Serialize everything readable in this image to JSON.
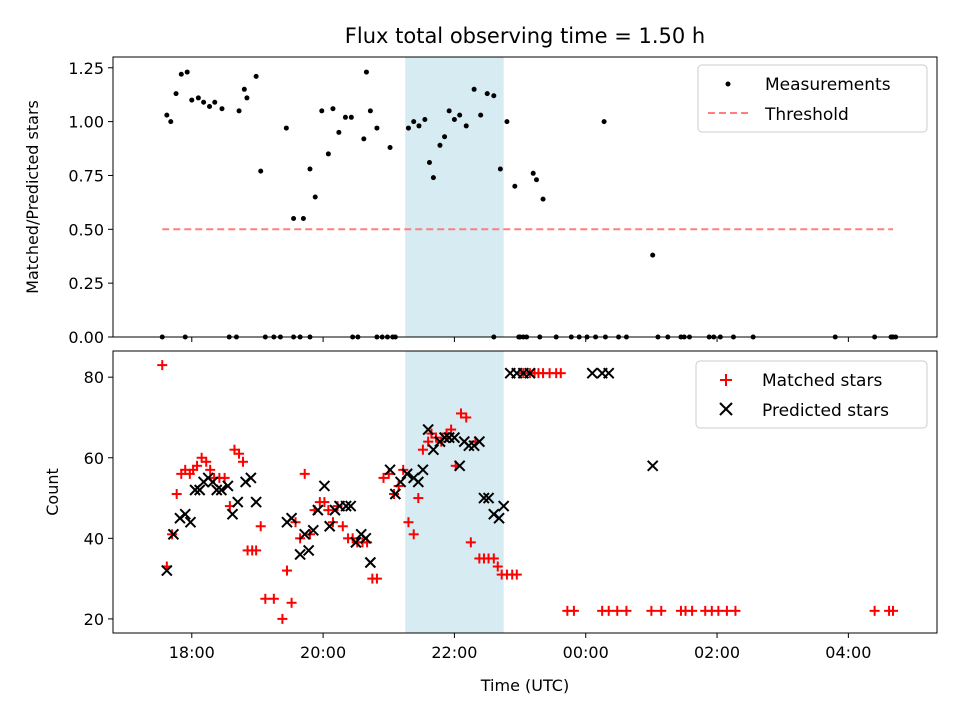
{
  "chart_data": [
    {
      "type": "scatter",
      "title": "Flux total observing time = 1.50 h",
      "ylabel": "Matched/Predicted stars",
      "xlabel": "",
      "xlim": [
        16.8,
        29.35
      ],
      "ylim": [
        0.0,
        1.3
      ],
      "yticks": [
        0.0,
        0.25,
        0.5,
        0.75,
        1.0,
        1.25
      ],
      "ytick_labels": [
        "0.00",
        "0.25",
        "0.50",
        "0.75",
        "1.00",
        "1.25"
      ],
      "shaded_span": [
        21.25,
        22.75
      ],
      "legend": {
        "position": "upper right",
        "entries": [
          "Measurements",
          "Threshold"
        ]
      },
      "series": [
        {
          "name": "Measurements",
          "kind": "points",
          "color": "#000000",
          "x": [
            17.55,
            17.62,
            17.68,
            17.76,
            17.84,
            17.93,
            18.0,
            18.1,
            18.18,
            18.27,
            18.35,
            18.46,
            18.57,
            18.72,
            18.8,
            18.84,
            18.98,
            19.05,
            19.44,
            19.55,
            19.7,
            19.8,
            19.88,
            19.98,
            20.08,
            20.15,
            20.24,
            20.34,
            20.43,
            20.53,
            20.62,
            20.66,
            20.72,
            20.82,
            21.02,
            21.3,
            21.38,
            21.46,
            21.55,
            21.62,
            21.68,
            21.78,
            21.85,
            21.92,
            22.0,
            22.08,
            22.18,
            22.3,
            22.4,
            22.5,
            22.6,
            22.7,
            22.8,
            22.92,
            23.0,
            23.1,
            23.2,
            23.25,
            23.35,
            24.28,
            25.02,
            26.55,
            27.8,
            28.65,
            28.68,
            28.72,
            17.9,
            18.68,
            19.12,
            19.25,
            19.35,
            19.55,
            19.65,
            19.8,
            20.45,
            20.82,
            20.9,
            20.98,
            21.06,
            21.1,
            22.6,
            22.98,
            23.05,
            23.3,
            23.55,
            23.78,
            23.9,
            24.02,
            24.15,
            24.3,
            24.5,
            24.62,
            25.1,
            25.25,
            25.45,
            25.5,
            25.58,
            25.88,
            25.95,
            26.05,
            26.25,
            28.4,
            28.66
          ],
          "y": [
            0.0,
            1.03,
            1.0,
            1.13,
            1.22,
            1.23,
            1.1,
            1.11,
            1.09,
            1.07,
            1.09,
            1.06,
            0.0,
            1.05,
            1.15,
            1.11,
            1.21,
            0.77,
            0.97,
            0.55,
            0.55,
            0.78,
            0.65,
            1.05,
            0.85,
            1.06,
            0.95,
            1.02,
            1.02,
            0.0,
            0.92,
            1.23,
            1.05,
            0.97,
            0.88,
            0.97,
            1.0,
            0.98,
            1.01,
            0.81,
            0.74,
            0.89,
            0.93,
            1.05,
            1.01,
            1.03,
            0.98,
            1.15,
            1.03,
            1.13,
            1.12,
            0.78,
            1.0,
            0.7,
            0.0,
            0.0,
            0.76,
            0.73,
            0.64,
            1.0,
            0.38,
            0.0,
            0.0,
            0.0,
            0.0,
            0.0,
            0.0,
            0.0,
            0.0,
            0.0,
            0.0,
            0.0,
            0.0,
            0.0,
            0.0,
            0.0,
            0.0,
            0.0,
            0.0,
            0.0,
            0.0,
            0.0,
            0.0,
            0.0,
            0.0,
            0.0,
            0.0,
            0.0,
            0.0,
            0.0,
            0.0,
            0.0,
            0.0,
            0.0,
            0.0,
            0.0,
            0.0,
            0.0,
            0.0,
            0.0,
            0.0,
            0.0,
            0.0
          ]
        },
        {
          "name": "Threshold",
          "kind": "dashed-line",
          "color": "#ff7f7f",
          "x": [
            17.55,
            28.68
          ],
          "y": [
            0.5,
            0.5
          ]
        }
      ]
    },
    {
      "type": "scatter",
      "title": "",
      "xlabel": "Time (UTC)",
      "ylabel": "Count",
      "xlim": [
        16.8,
        29.35
      ],
      "ylim": [
        16.5,
        86.5
      ],
      "xticks": [
        18,
        20,
        22,
        24,
        26,
        28
      ],
      "xtick_labels": [
        "18:00",
        "20:00",
        "22:00",
        "00:00",
        "02:00",
        "04:00"
      ],
      "yticks": [
        20,
        40,
        60,
        80
      ],
      "ytick_labels": [
        "20",
        "40",
        "60",
        "80"
      ],
      "shaded_span": [
        21.25,
        22.75
      ],
      "legend": {
        "position": "upper right",
        "entries": [
          "Matched stars",
          "Predicted stars"
        ]
      },
      "series": [
        {
          "name": "Matched stars",
          "marker": "+",
          "color": "#ff0000",
          "x": [
            17.55,
            17.62,
            17.7,
            17.77,
            17.84,
            17.9,
            17.97,
            18.02,
            18.08,
            18.15,
            18.22,
            18.28,
            18.34,
            18.42,
            18.5,
            18.58,
            18.65,
            18.72,
            18.78,
            18.85,
            18.92,
            18.98,
            19.05,
            19.12,
            19.25,
            19.38,
            19.45,
            19.52,
            19.58,
            19.65,
            19.72,
            19.8,
            19.87,
            19.95,
            20.02,
            20.08,
            20.15,
            20.22,
            20.3,
            20.38,
            20.45,
            20.52,
            20.6,
            20.67,
            20.75,
            20.82,
            20.92,
            21.0,
            21.08,
            21.15,
            21.22,
            21.3,
            21.38,
            21.45,
            21.52,
            21.6,
            21.65,
            21.72,
            21.8,
            21.88,
            21.95,
            22.02,
            22.1,
            22.18,
            22.25,
            22.32,
            22.38,
            22.45,
            22.52,
            22.6,
            22.66,
            22.72,
            22.8,
            22.88,
            22.95,
            23.05,
            23.15,
            23.22,
            23.28,
            23.35,
            23.45,
            23.55,
            23.62,
            23.72,
            23.82,
            24.25,
            24.35,
            24.48,
            24.62,
            25.0,
            25.15,
            25.45,
            25.52,
            25.62,
            25.82,
            25.92,
            26.02,
            26.15,
            26.28,
            28.4,
            28.62,
            28.68
          ],
          "y": [
            83,
            33,
            41,
            51,
            56,
            57,
            56,
            57,
            58,
            60,
            59,
            57,
            55,
            55,
            55,
            48,
            62,
            61,
            59,
            37,
            37,
            37,
            43,
            25,
            25,
            20,
            32,
            24,
            44,
            40,
            56,
            41,
            47,
            49,
            49,
            47,
            44,
            48,
            43,
            40,
            40,
            39,
            39,
            39,
            30,
            30,
            55,
            56,
            51,
            53,
            57,
            44,
            41,
            50,
            62,
            64,
            66,
            65,
            64,
            66,
            67,
            58,
            71,
            70,
            39,
            64,
            35,
            35,
            35,
            35,
            33,
            31,
            31,
            31,
            31,
            81,
            81,
            81,
            81,
            81,
            81,
            81,
            81,
            22,
            22,
            22,
            22,
            22,
            22,
            22,
            22,
            22,
            22,
            22,
            22,
            22,
            22,
            22,
            22,
            22,
            22,
            22
          ],
          "x_override_note": ""
        },
        {
          "name": "Predicted stars",
          "marker": "x",
          "color": "#000000",
          "x": [
            17.62,
            17.72,
            17.82,
            17.9,
            17.98,
            18.05,
            18.12,
            18.18,
            18.25,
            18.32,
            18.38,
            18.45,
            18.55,
            18.62,
            18.7,
            18.82,
            18.9,
            18.98,
            19.45,
            19.52,
            19.65,
            19.72,
            19.78,
            19.85,
            19.92,
            20.02,
            20.1,
            20.18,
            20.25,
            20.35,
            20.42,
            20.5,
            20.58,
            20.65,
            20.72,
            21.02,
            21.1,
            21.18,
            21.28,
            21.38,
            21.45,
            21.52,
            21.6,
            21.68,
            21.78,
            21.85,
            21.92,
            22.0,
            22.08,
            22.15,
            22.22,
            22.3,
            22.38,
            22.45,
            22.52,
            22.6,
            22.68,
            22.75,
            22.85,
            22.95,
            23.05,
            23.15,
            24.1,
            24.25,
            24.35,
            25.02
          ],
          "y": [
            32,
            41,
            45,
            46,
            44,
            52,
            52,
            54,
            55,
            54,
            52,
            52,
            53,
            46,
            49,
            54,
            55,
            49,
            44,
            45,
            36,
            41,
            37,
            42,
            47,
            53,
            43,
            47,
            48,
            48,
            48,
            39,
            41,
            40,
            34,
            57,
            51,
            54,
            56,
            55,
            54,
            57,
            67,
            62,
            64,
            65,
            65,
            65,
            58,
            64,
            63,
            63,
            64,
            50,
            50,
            46,
            45,
            48,
            81,
            81,
            81,
            81,
            81,
            81,
            81,
            58
          ],
          "x_note": ""
        }
      ]
    }
  ]
}
